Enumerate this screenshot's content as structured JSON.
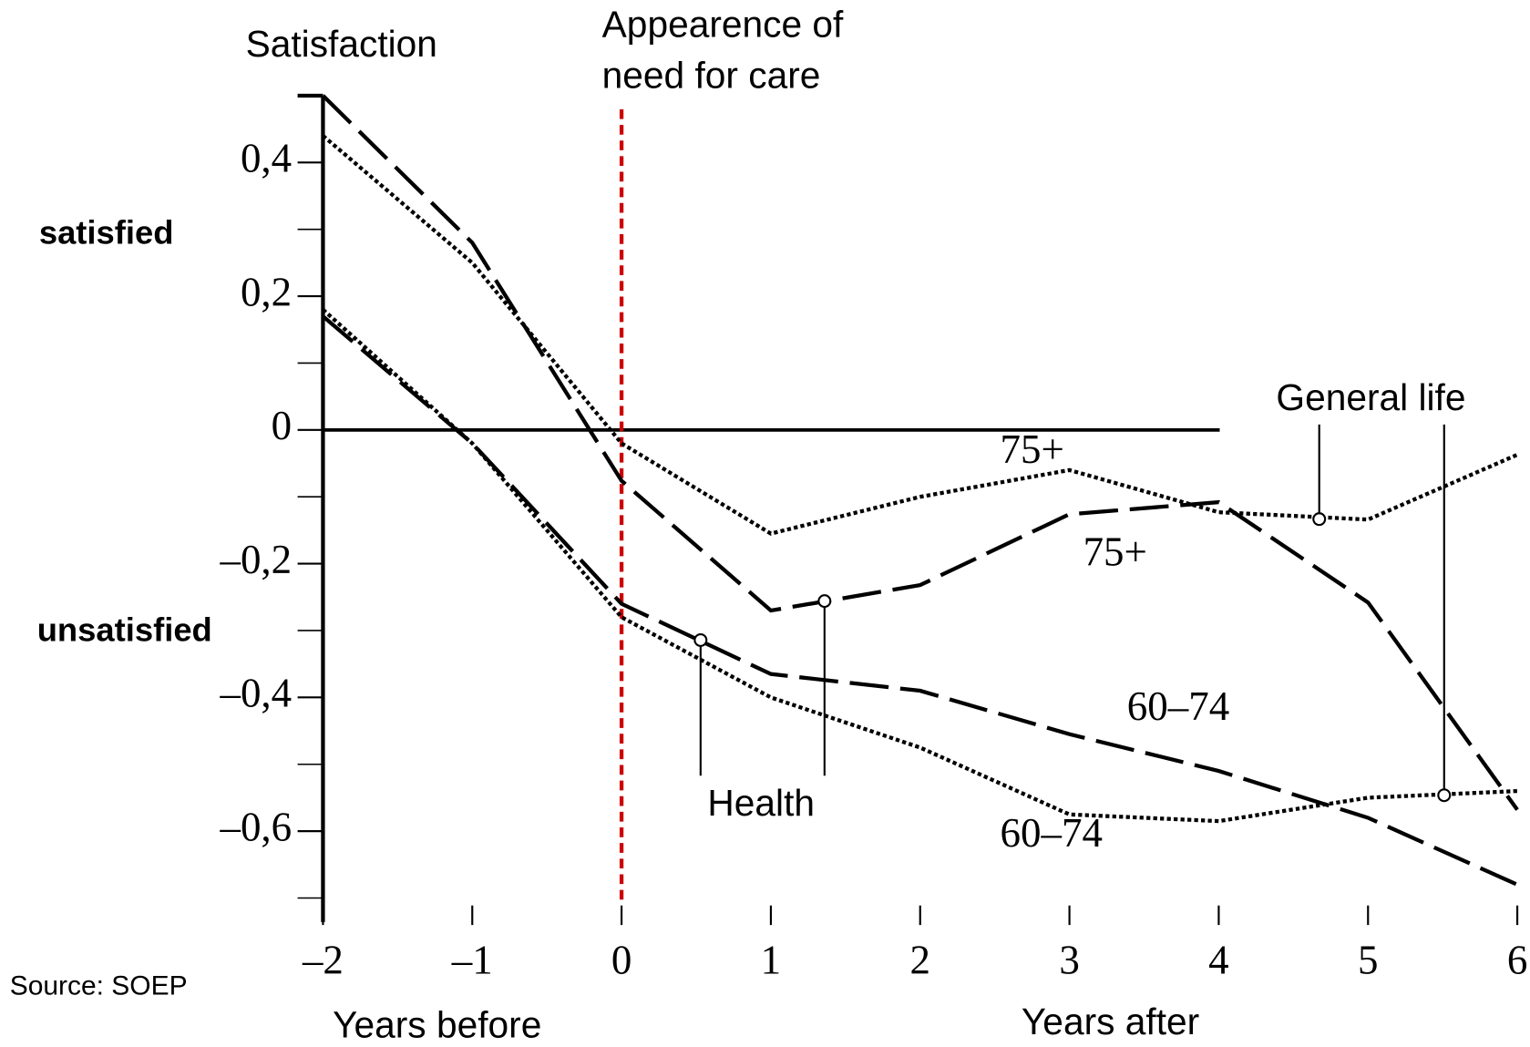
{
  "chart_data": {
    "type": "line",
    "y_label": "Satisfaction",
    "event": {
      "x": 0,
      "color": "#cc0000",
      "text": [
        "Appearence of",
        "need for care"
      ]
    },
    "regions": [
      "satisfied",
      "unsatisfied"
    ],
    "source": "Source: SOEP",
    "x_labels": [
      "Years before",
      "Years after"
    ],
    "groups": [
      "General life",
      "Health"
    ],
    "x": [
      -2,
      -1,
      0,
      1,
      2,
      3,
      4,
      5,
      6
    ],
    "series": [
      {
        "name": "75+",
        "group": 0,
        "dash": "dotted",
        "color": "#000000",
        "values": [
          0.44,
          0.25,
          -0.02,
          -0.155,
          -0.1,
          -0.06,
          -0.123,
          -0.134,
          -0.037
        ]
      },
      {
        "name": "75+",
        "group": 1,
        "dash": "dashed",
        "color": "#000000",
        "values": [
          0.5,
          0.28,
          -0.076,
          -0.27,
          -0.232,
          -0.126,
          -0.108,
          -0.258,
          -0.568
        ]
      },
      {
        "name": "60–74",
        "group": 1,
        "dash": "dashed",
        "color": "#000000",
        "values": [
          0.17,
          -0.02,
          -0.26,
          -0.365,
          -0.39,
          -0.455,
          -0.51,
          -0.58,
          -0.68
        ]
      },
      {
        "name": "60–74",
        "group": 0,
        "dash": "dotted",
        "color": "#000000",
        "values": [
          0.18,
          -0.02,
          -0.28,
          -0.4,
          -0.475,
          -0.575,
          -0.585,
          -0.55,
          -0.54
        ]
      }
    ],
    "xlim": [
      -2,
      6
    ],
    "xticks": [
      {
        "value": -2,
        "label": "–2"
      },
      {
        "value": -1,
        "label": "–1"
      },
      0,
      1,
      2,
      3,
      4,
      5,
      6
    ],
    "ylim": [
      -0.736,
      0.5
    ],
    "yticks": [
      {
        "value": 0.4,
        "label": "0,4"
      },
      {
        "value": 0.2,
        "label": "0,2"
      },
      0,
      {
        "value": -0.2,
        "label": "–0,2"
      },
      {
        "value": -0.4,
        "label": "–0,4"
      },
      {
        "value": -0.6,
        "label": "–0,6"
      }
    ],
    "yticks_minor": [
      0.5,
      0.3,
      0.1,
      -0.1,
      -0.3,
      -0.5,
      -0.7
    ]
  }
}
